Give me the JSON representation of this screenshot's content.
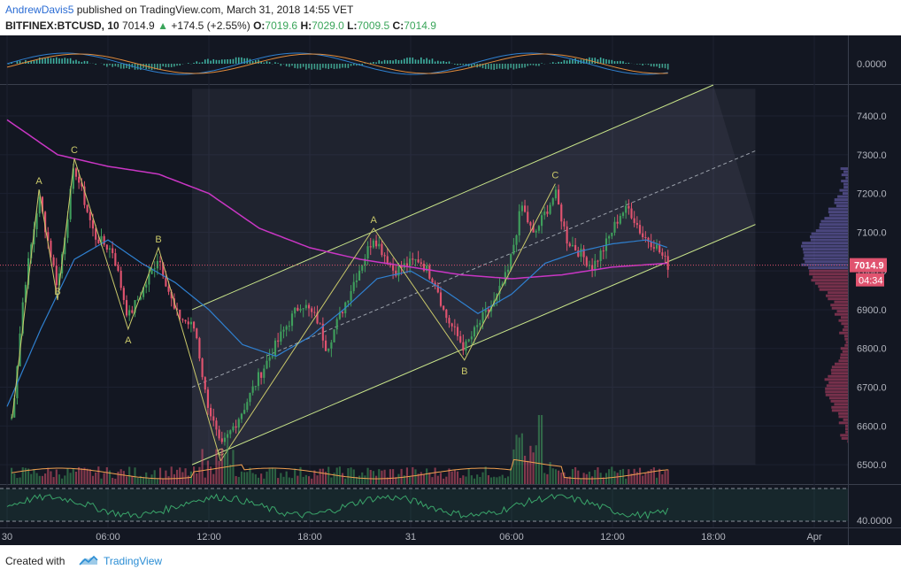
{
  "header": {
    "author": "AndrewDavis5",
    "published": "published on TradingView.com, March 31, 2018 14:55 VET",
    "symbol": "BITFINEX:BTCUSD, 10",
    "last": "7014.9",
    "change": "+174.5 (+2.55%)",
    "o_label": "O:",
    "o_value": "7019.6",
    "h_label": "H:",
    "h_value": "7029.0",
    "l_label": "L:",
    "l_value": "7009.5",
    "c_label": "C:",
    "c_value": "7014.9"
  },
  "footer": {
    "created_with": "Created with",
    "brand": "TradingView"
  },
  "colors": {
    "background": "#131722",
    "up": "#3f9e5c",
    "down": "#e0536f",
    "ma_purple": "#c936c4",
    "ma_blue": "#2f80d0",
    "channel": "#c9e58a",
    "wave": "#c9c86a",
    "volume_ma": "#f0a050",
    "rsi": "#3aa56a"
  },
  "chart_data": {
    "type": "candlestick",
    "symbol": "BITFINEX:BTCUSD",
    "interval": "10",
    "ylim": [
      6450,
      7480
    ],
    "yticks": [
      6500,
      6600,
      6700,
      6800,
      6900,
      7000,
      7100,
      7200,
      7300,
      7400
    ],
    "ytick_labels": [
      "6500.0",
      "6600.0",
      "6700.0",
      "6800.0",
      "6900.0",
      "7000.0",
      "7100.0",
      "7200.0",
      "7300.0",
      "7400.0"
    ],
    "xlim_hours": [
      0,
      50
    ],
    "xticks": [
      {
        "hour": 0,
        "label": "30"
      },
      {
        "hour": 6,
        "label": "06:00"
      },
      {
        "hour": 12,
        "label": "12:00"
      },
      {
        "hour": 18,
        "label": "18:00"
      },
      {
        "hour": 24,
        "label": "31"
      },
      {
        "hour": 30,
        "label": "06:00"
      },
      {
        "hour": 36,
        "label": "12:00"
      },
      {
        "hour": 42,
        "label": "18:00"
      },
      {
        "hour": 48,
        "label": "Apr"
      }
    ],
    "price_anchors": [
      {
        "hour": 0.3,
        "price": 6620
      },
      {
        "hour": 1.0,
        "price": 6950
      },
      {
        "hour": 1.9,
        "price": 7190
      },
      {
        "hour": 3.0,
        "price": 6960
      },
      {
        "hour": 4.0,
        "price": 7270
      },
      {
        "hour": 5.2,
        "price": 7090
      },
      {
        "hour": 6.3,
        "price": 7050
      },
      {
        "hour": 7.2,
        "price": 6880
      },
      {
        "hour": 8.3,
        "price": 6970
      },
      {
        "hour": 9.0,
        "price": 7040
      },
      {
        "hour": 10.0,
        "price": 6890
      },
      {
        "hour": 11.2,
        "price": 6850
      },
      {
        "hour": 11.8,
        "price": 6680
      },
      {
        "hour": 12.7,
        "price": 6540
      },
      {
        "hour": 14.0,
        "price": 6640
      },
      {
        "hour": 15.0,
        "price": 6730
      },
      {
        "hour": 16.5,
        "price": 6850
      },
      {
        "hour": 17.5,
        "price": 6920
      },
      {
        "hour": 18.5,
        "price": 6870
      },
      {
        "hour": 19.0,
        "price": 6800
      },
      {
        "hour": 20.5,
        "price": 6960
      },
      {
        "hour": 21.8,
        "price": 7090
      },
      {
        "hour": 23.0,
        "price": 7000
      },
      {
        "hour": 24.5,
        "price": 7030
      },
      {
        "hour": 25.5,
        "price": 6970
      },
      {
        "hour": 26.0,
        "price": 6890
      },
      {
        "hour": 27.2,
        "price": 6800
      },
      {
        "hour": 28.3,
        "price": 6880
      },
      {
        "hour": 29.0,
        "price": 6920
      },
      {
        "hour": 29.8,
        "price": 7000
      },
      {
        "hour": 30.6,
        "price": 7170
      },
      {
        "hour": 31.3,
        "price": 7090
      },
      {
        "hour": 32.0,
        "price": 7150
      },
      {
        "hour": 32.6,
        "price": 7200
      },
      {
        "hour": 33.3,
        "price": 7080
      },
      {
        "hour": 34.0,
        "price": 7050
      },
      {
        "hour": 34.8,
        "price": 7010
      },
      {
        "hour": 35.5,
        "price": 7060
      },
      {
        "hour": 36.5,
        "price": 7150
      },
      {
        "hour": 37.0,
        "price": 7160
      },
      {
        "hour": 37.8,
        "price": 7090
      },
      {
        "hour": 38.5,
        "price": 7070
      },
      {
        "hour": 39.3,
        "price": 7014.9
      }
    ],
    "ma_purple_anchors": [
      {
        "hour": 0,
        "price": 7390
      },
      {
        "hour": 3,
        "price": 7300
      },
      {
        "hour": 6,
        "price": 7270
      },
      {
        "hour": 9,
        "price": 7250
      },
      {
        "hour": 12,
        "price": 7200
      },
      {
        "hour": 15,
        "price": 7110
      },
      {
        "hour": 18,
        "price": 7060
      },
      {
        "hour": 21,
        "price": 7030
      },
      {
        "hour": 24,
        "price": 7010
      },
      {
        "hour": 27,
        "price": 6990
      },
      {
        "hour": 30,
        "price": 6980
      },
      {
        "hour": 33,
        "price": 6990
      },
      {
        "hour": 36,
        "price": 7010
      },
      {
        "hour": 39.3,
        "price": 7020
      }
    ],
    "ma_blue_anchors": [
      {
        "hour": 0,
        "price": 6650
      },
      {
        "hour": 2,
        "price": 6850
      },
      {
        "hour": 4,
        "price": 7030
      },
      {
        "hour": 6,
        "price": 7080
      },
      {
        "hour": 8,
        "price": 7020
      },
      {
        "hour": 10,
        "price": 6970
      },
      {
        "hour": 12,
        "price": 6900
      },
      {
        "hour": 14,
        "price": 6810
      },
      {
        "hour": 16,
        "price": 6780
      },
      {
        "hour": 18,
        "price": 6830
      },
      {
        "hour": 20,
        "price": 6900
      },
      {
        "hour": 22,
        "price": 6980
      },
      {
        "hour": 24,
        "price": 7000
      },
      {
        "hour": 26,
        "price": 6950
      },
      {
        "hour": 28,
        "price": 6890
      },
      {
        "hour": 30,
        "price": 6940
      },
      {
        "hour": 32,
        "price": 7020
      },
      {
        "hour": 34,
        "price": 7050
      },
      {
        "hour": 36,
        "price": 7070
      },
      {
        "hour": 38,
        "price": 7080
      },
      {
        "hour": 39.3,
        "price": 7060
      }
    ],
    "channel": {
      "lower": [
        {
          "hour": 11,
          "price": 6500
        },
        {
          "hour": 44.5,
          "price": 7120
        }
      ],
      "upper": [
        {
          "hour": 11,
          "price": 6900
        },
        {
          "hour": 42,
          "price": 7480
        }
      ],
      "box": {
        "x0": 11,
        "x1": 44.5,
        "y0": 6500,
        "y1": 7470
      }
    },
    "wave_labels": [
      {
        "text": "A",
        "hour": 1.9,
        "price": 7210
      },
      {
        "text": "B",
        "hour": 3.0,
        "price": 6925
      },
      {
        "text": "C",
        "hour": 4.0,
        "price": 7290
      },
      {
        "text": "A",
        "hour": 7.2,
        "price": 6850
      },
      {
        "text": "B",
        "hour": 9.0,
        "price": 7060
      },
      {
        "text": "C",
        "hour": 12.7,
        "price": 6510
      },
      {
        "text": "A",
        "hour": 21.8,
        "price": 7110
      },
      {
        "text": "B",
        "hour": 27.2,
        "price": 6770
      },
      {
        "text": "C",
        "hour": 32.6,
        "price": 7225
      }
    ],
    "last_price_label": "7014.9",
    "countdown_label": "04:34",
    "macd_label": "0.0000",
    "rsi_label": "40.0000"
  }
}
